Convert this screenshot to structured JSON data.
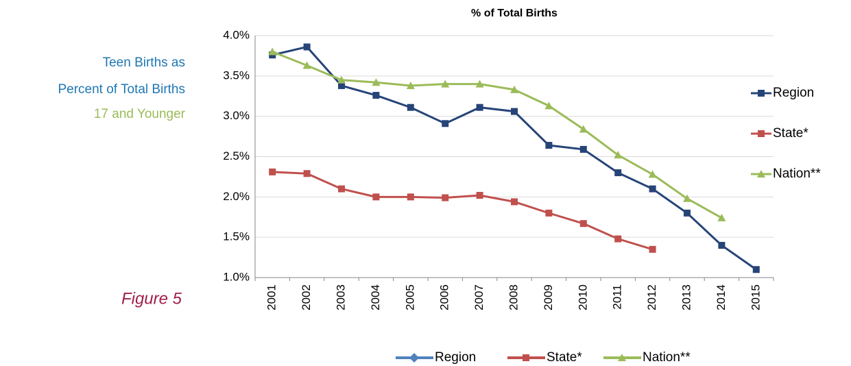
{
  "chart_data": {
    "type": "line",
    "title": "% of Total Births",
    "categories": [
      "2001",
      "2002",
      "2003",
      "2004",
      "2005",
      "2006",
      "2007",
      "2008",
      "2009",
      "2010",
      "2011",
      "2012",
      "2013",
      "2014",
      "2015"
    ],
    "series": [
      {
        "name": "Region",
        "color": "#264478",
        "marker": "square",
        "values": [
          3.76,
          3.86,
          3.38,
          3.26,
          3.11,
          2.91,
          3.11,
          3.06,
          2.64,
          2.59,
          2.3,
          2.1,
          1.8,
          1.4,
          1.1
        ]
      },
      {
        "name": "State*",
        "color": "#c0504d",
        "marker": "square",
        "values": [
          2.31,
          2.29,
          2.1,
          2.0,
          2.0,
          1.99,
          2.02,
          1.94,
          1.8,
          1.67,
          1.48,
          1.35,
          null,
          null,
          null
        ]
      },
      {
        "name": "Nation**",
        "color": "#9bbb59",
        "marker": "triangle",
        "values": [
          3.8,
          3.63,
          3.45,
          3.42,
          3.38,
          3.4,
          3.4,
          3.33,
          3.13,
          2.84,
          2.52,
          2.28,
          1.98,
          1.74,
          null
        ]
      }
    ],
    "ylim": [
      1.0,
      4.0
    ],
    "yticks": [
      {
        "value": 1.0,
        "label": "1.0%"
      },
      {
        "value": 1.5,
        "label": "1.5%"
      },
      {
        "value": 2.0,
        "label": "2.0%"
      },
      {
        "value": 2.5,
        "label": "2.5%"
      },
      {
        "value": 3.0,
        "label": "3.0%"
      },
      {
        "value": 3.5,
        "label": "3.5%"
      },
      {
        "value": 4.0,
        "label": "4.0%"
      }
    ],
    "grid": true,
    "legend": "right",
    "bottom_legend": {
      "colors": [
        "#4f81bd",
        "#c0504d",
        "#9bbb59"
      ],
      "markers": [
        "diamond",
        "square",
        "triangle"
      ]
    }
  },
  "caption": {
    "lines": [
      "Teen Births as",
      "Percent of Total Births",
      "17 and Younger"
    ],
    "figure": "Figure 5"
  }
}
